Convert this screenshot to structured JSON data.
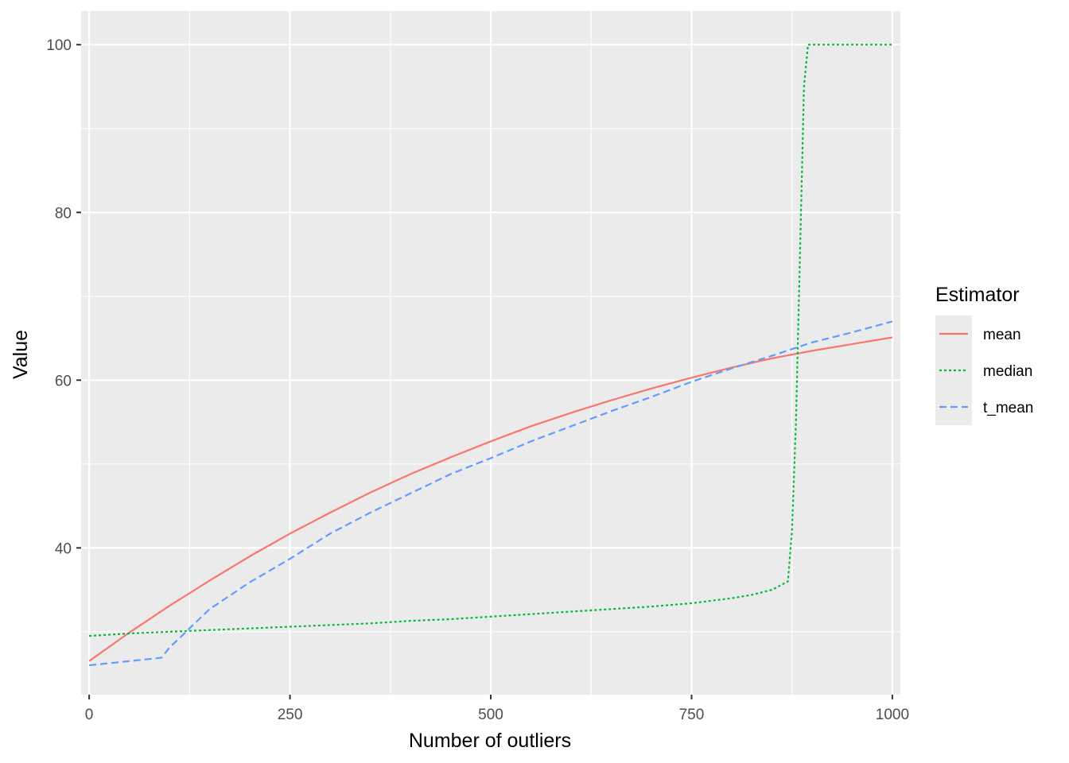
{
  "chart_data": {
    "type": "line",
    "xlabel": "Number of outliers",
    "ylabel": "Value",
    "xlim": [
      -10,
      1010
    ],
    "ylim": [
      22.5,
      104
    ],
    "x_ticks": [
      0,
      250,
      500,
      750,
      1000
    ],
    "x_tick_labels": [
      "0",
      "250",
      "500",
      "750",
      "1000"
    ],
    "y_ticks": [
      40,
      60,
      80,
      100
    ],
    "y_tick_labels": [
      "40",
      "60",
      "80",
      "100"
    ],
    "grid": true,
    "legend": {
      "title": "Estimator",
      "position": "right",
      "entries": [
        "mean",
        "median",
        "t_mean"
      ]
    },
    "series": [
      {
        "name": "mean",
        "color": "#f8766d",
        "line_style": "solid",
        "x": [
          0,
          50,
          100,
          150,
          200,
          250,
          300,
          350,
          400,
          450,
          500,
          550,
          600,
          650,
          700,
          750,
          800,
          850,
          900,
          950,
          1000
        ],
        "y": [
          26.5,
          29.9,
          33.1,
          36.1,
          39.0,
          41.7,
          44.2,
          46.6,
          48.8,
          50.8,
          52.7,
          54.5,
          56.1,
          57.6,
          59.0,
          60.3,
          61.5,
          62.6,
          63.5,
          64.3,
          65.1
        ]
      },
      {
        "name": "median",
        "color": "#00ba38",
        "line_style": "dotted",
        "x": [
          0,
          50,
          100,
          150,
          200,
          250,
          300,
          350,
          400,
          450,
          500,
          550,
          600,
          650,
          700,
          750,
          800,
          825,
          850,
          870,
          875,
          880,
          885,
          890,
          895,
          1000
        ],
        "y": [
          29.5,
          29.8,
          30.0,
          30.2,
          30.4,
          30.6,
          30.8,
          31.0,
          31.3,
          31.5,
          31.8,
          32.1,
          32.4,
          32.7,
          33.0,
          33.4,
          34.0,
          34.4,
          35.0,
          36.0,
          42.0,
          55.0,
          75.0,
          95.0,
          100.0,
          100.0
        ]
      },
      {
        "name": "t_mean",
        "color": "#619cff",
        "line_style": "dashed",
        "x": [
          0,
          90,
          100,
          150,
          200,
          250,
          300,
          350,
          400,
          450,
          500,
          550,
          600,
          650,
          700,
          750,
          800,
          850,
          900,
          950,
          1000
        ],
        "y": [
          26.0,
          26.9,
          28.1,
          32.7,
          35.9,
          38.7,
          41.7,
          44.2,
          46.5,
          48.8,
          50.7,
          52.7,
          54.5,
          56.3,
          58.0,
          59.8,
          61.4,
          62.9,
          64.5,
          65.7,
          67.0
        ]
      }
    ]
  }
}
